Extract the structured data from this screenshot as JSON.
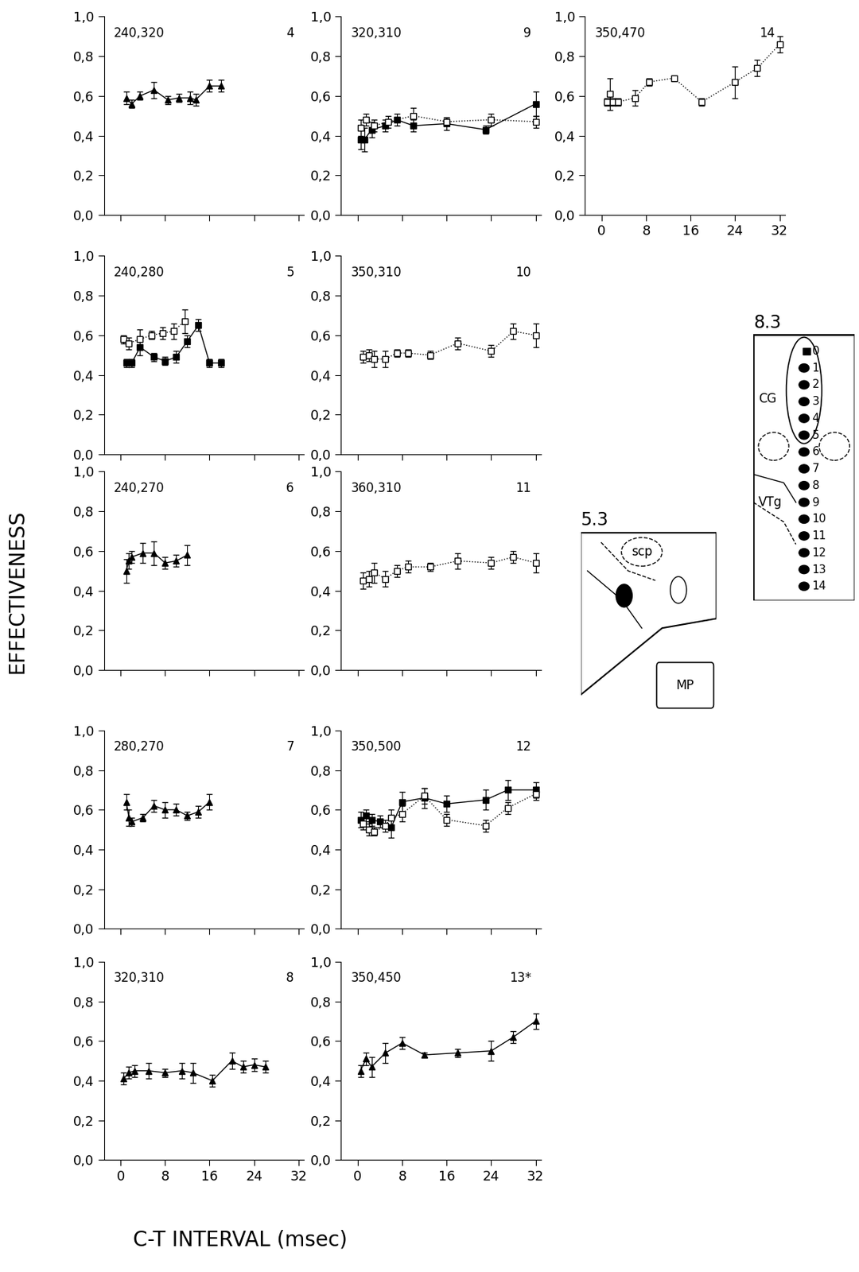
{
  "x_label": "C-T INTERVAL (msec)",
  "y_label": "EFFECTIVENESS",
  "chart_data": [
    {
      "type": "line",
      "title": "240,320",
      "label": "4",
      "tick_labels": "y",
      "xlim": [
        -3,
        33
      ],
      "ylim": [
        0,
        1
      ],
      "xticks": [
        0,
        8,
        16,
        24,
        32
      ],
      "yticks": [
        {
          "value": 0,
          "label": "0,0"
        },
        {
          "value": 0.2,
          "label": "0,2"
        },
        {
          "value": 0.4,
          "label": "0,4"
        },
        {
          "value": 0.6,
          "label": "0,6"
        },
        {
          "value": 0.8,
          "label": "0,8"
        },
        {
          "value": 1,
          "label": "1,0"
        }
      ],
      "series": [
        {
          "color": "#000000",
          "marker": "triangle",
          "line_style": "solid",
          "x": [
            1,
            2,
            3.5,
            6,
            8.5,
            10.5,
            12.5,
            13.5,
            16,
            18
          ],
          "values": [
            0.59,
            0.56,
            0.6,
            0.63,
            0.58,
            0.59,
            0.59,
            0.58,
            0.65,
            0.65
          ],
          "errors": [
            0.03,
            0.02,
            0.02,
            0.04,
            0.02,
            0.02,
            0.03,
            0.03,
            0.03,
            0.03
          ]
        }
      ]
    },
    {
      "type": "line",
      "title": "240,280",
      "label": "5",
      "tick_labels": "y",
      "xlim": [
        -3,
        33
      ],
      "ylim": [
        0,
        1
      ],
      "xticks": [
        0,
        8,
        16,
        24,
        32
      ],
      "yticks": [
        {
          "value": 0,
          "label": "0,0"
        },
        {
          "value": 0.2,
          "label": "0,2"
        },
        {
          "value": 0.4,
          "label": "0,4"
        },
        {
          "value": 0.6,
          "label": "0,6"
        },
        {
          "value": 0.8,
          "label": "0,8"
        },
        {
          "value": 1,
          "label": "1,0"
        }
      ],
      "series": [
        {
          "color": "#000000",
          "marker": "square",
          "line_style": "solid",
          "x": [
            1,
            2,
            3.5,
            6,
            8,
            10,
            12,
            14,
            16,
            18
          ],
          "values": [
            0.46,
            0.46,
            0.54,
            0.49,
            0.47,
            0.49,
            0.57,
            0.65,
            0.46,
            0.46
          ],
          "errors": [
            0.02,
            0.02,
            0.04,
            0.02,
            0.02,
            0.03,
            0.03,
            0.03,
            0.02,
            0.02
          ]
        },
        {
          "color": "#000000",
          "marker": "open_square",
          "line_style": "dotted",
          "x": [
            0.5,
            1.5,
            3.5,
            5.5,
            7.5,
            9.5,
            11.5
          ],
          "values": [
            0.58,
            0.56,
            0.58,
            0.6,
            0.61,
            0.62,
            0.67
          ],
          "errors": [
            0.02,
            0.03,
            0.05,
            0.02,
            0.03,
            0.04,
            0.06
          ]
        }
      ]
    },
    {
      "type": "line",
      "title": "240,270",
      "label": "6",
      "tick_labels": "y",
      "xlim": [
        -3,
        33
      ],
      "ylim": [
        0,
        1
      ],
      "xticks": [
        0,
        8,
        16,
        24,
        32
      ],
      "yticks": [
        {
          "value": 0,
          "label": "0,0"
        },
        {
          "value": 0.2,
          "label": "0,2"
        },
        {
          "value": 0.4,
          "label": "0,4"
        },
        {
          "value": 0.6,
          "label": "0,6"
        },
        {
          "value": 0.8,
          "label": "0,8"
        },
        {
          "value": 1,
          "label": "1,0"
        }
      ],
      "series": [
        {
          "color": "#000000",
          "marker": "triangle",
          "line_style": "solid",
          "x": [
            1,
            1.5,
            2,
            4,
            6,
            8,
            10,
            12
          ],
          "values": [
            0.5,
            0.55,
            0.57,
            0.59,
            0.59,
            0.54,
            0.55,
            0.58
          ],
          "errors": [
            0.06,
            0.04,
            0.03,
            0.05,
            0.06,
            0.03,
            0.03,
            0.05
          ]
        }
      ]
    },
    {
      "type": "line",
      "title": "280,270",
      "label": "7",
      "tick_labels": "y",
      "xlim": [
        -3,
        33
      ],
      "ylim": [
        0,
        1
      ],
      "xticks": [
        0,
        8,
        16,
        24,
        32
      ],
      "yticks": [
        {
          "value": 0,
          "label": "0,0"
        },
        {
          "value": 0.2,
          "label": "0,2"
        },
        {
          "value": 0.4,
          "label": "0,4"
        },
        {
          "value": 0.6,
          "label": "0,6"
        },
        {
          "value": 0.8,
          "label": "0,8"
        },
        {
          "value": 1,
          "label": "1,0"
        }
      ],
      "series": [
        {
          "color": "#000000",
          "marker": "triangle",
          "line_style": "solid",
          "x": [
            1,
            1.5,
            2,
            4,
            6,
            8,
            10,
            12,
            14,
            16
          ],
          "values": [
            0.64,
            0.56,
            0.54,
            0.56,
            0.62,
            0.6,
            0.6,
            0.57,
            0.59,
            0.64
          ],
          "errors": [
            0.04,
            0.04,
            0.02,
            0.02,
            0.03,
            0.04,
            0.03,
            0.02,
            0.03,
            0.04
          ]
        }
      ]
    },
    {
      "type": "line",
      "title": "320,310",
      "label": "8",
      "xlim": [
        -3,
        33
      ],
      "ylim": [
        0,
        1
      ],
      "xticks": [
        0,
        8,
        16,
        24,
        32
      ],
      "yticks": [
        {
          "value": 0,
          "label": "0,0"
        },
        {
          "value": 0.2,
          "label": "0,2"
        },
        {
          "value": 0.4,
          "label": "0,4"
        },
        {
          "value": 0.6,
          "label": "0,6"
        },
        {
          "value": 0.8,
          "label": "0,8"
        },
        {
          "value": 1,
          "label": "1,0"
        }
      ],
      "series": [
        {
          "color": "#000000",
          "marker": "triangle",
          "line_style": "solid",
          "x": [
            0.5,
            1.5,
            2.5,
            5,
            8,
            11,
            13,
            16.5,
            20,
            22,
            24,
            26
          ],
          "values": [
            0.41,
            0.44,
            0.45,
            0.45,
            0.44,
            0.45,
            0.44,
            0.4,
            0.5,
            0.47,
            0.48,
            0.47
          ],
          "errors": [
            0.03,
            0.03,
            0.03,
            0.04,
            0.02,
            0.04,
            0.05,
            0.03,
            0.04,
            0.03,
            0.03,
            0.03
          ]
        }
      ]
    },
    {
      "type": "line",
      "title": "320,310",
      "label": "9",
      "tick_labels": "y",
      "xlim": [
        -3,
        33
      ],
      "ylim": [
        0,
        1
      ],
      "xticks": [
        0,
        8,
        16,
        24,
        32
      ],
      "yticks": [
        {
          "value": 0,
          "label": "0,0"
        },
        {
          "value": 0.2,
          "label": "0,2"
        },
        {
          "value": 0.4,
          "label": "0,4"
        },
        {
          "value": 0.6,
          "label": "0,6"
        },
        {
          "value": 0.8,
          "label": "0,8"
        },
        {
          "value": 1,
          "label": "1,0"
        }
      ],
      "series": [
        {
          "color": "#000000",
          "marker": "square",
          "line_style": "solid",
          "x": [
            0.5,
            1.2,
            2.5,
            5,
            7,
            10,
            16,
            23,
            32
          ],
          "values": [
            0.38,
            0.38,
            0.43,
            0.45,
            0.48,
            0.45,
            0.46,
            0.43,
            0.56
          ],
          "errors": [
            0.05,
            0.06,
            0.04,
            0.03,
            0.03,
            0.03,
            0.03,
            0.02,
            0.06
          ]
        },
        {
          "color": "#000000",
          "marker": "open_square",
          "line_style": "dotted",
          "x": [
            0.5,
            1.5,
            3,
            5.5,
            10,
            16,
            24,
            32
          ],
          "values": [
            0.44,
            0.48,
            0.45,
            0.47,
            0.5,
            0.47,
            0.48,
            0.47
          ],
          "errors": [
            0.04,
            0.03,
            0.03,
            0.03,
            0.04,
            0.02,
            0.03,
            0.03
          ]
        }
      ]
    },
    {
      "type": "line",
      "title": "350,310",
      "label": "10",
      "tick_labels": "y",
      "xlim": [
        -3,
        33
      ],
      "ylim": [
        0,
        1
      ],
      "xticks": [
        0,
        8,
        16,
        24,
        32
      ],
      "yticks": [
        {
          "value": 0,
          "label": "0,0"
        },
        {
          "value": 0.2,
          "label": "0,2"
        },
        {
          "value": 0.4,
          "label": "0,4"
        },
        {
          "value": 0.6,
          "label": "0,6"
        },
        {
          "value": 0.8,
          "label": "0,8"
        },
        {
          "value": 1,
          "label": "1,0"
        }
      ],
      "series": [
        {
          "color": "#000000",
          "marker": "open_square",
          "line_style": "dotted",
          "x": [
            1,
            2,
            3,
            5,
            7,
            9,
            13,
            18,
            24,
            28,
            32
          ],
          "values": [
            0.49,
            0.5,
            0.48,
            0.48,
            0.51,
            0.51,
            0.5,
            0.56,
            0.52,
            0.62,
            0.6
          ],
          "errors": [
            0.03,
            0.03,
            0.04,
            0.04,
            0.02,
            0.02,
            0.02,
            0.03,
            0.03,
            0.04,
            0.06
          ]
        }
      ]
    },
    {
      "type": "line",
      "title": "360,310",
      "label": "11",
      "tick_labels": "y",
      "xlim": [
        -3,
        33
      ],
      "ylim": [
        0,
        1
      ],
      "xticks": [
        0,
        8,
        16,
        24,
        32
      ],
      "yticks": [
        {
          "value": 0,
          "label": "0,0"
        },
        {
          "value": 0.2,
          "label": "0,2"
        },
        {
          "value": 0.4,
          "label": "0,4"
        },
        {
          "value": 0.6,
          "label": "0,6"
        },
        {
          "value": 0.8,
          "label": "0,8"
        },
        {
          "value": 1,
          "label": "1,0"
        }
      ],
      "series": [
        {
          "color": "#000000",
          "marker": "open_square",
          "line_style": "dotted",
          "x": [
            1,
            2,
            3,
            5,
            7,
            9,
            13,
            18,
            24,
            28,
            32
          ],
          "values": [
            0.45,
            0.46,
            0.49,
            0.46,
            0.5,
            0.52,
            0.52,
            0.55,
            0.54,
            0.57,
            0.54
          ],
          "errors": [
            0.04,
            0.04,
            0.05,
            0.04,
            0.03,
            0.03,
            0.02,
            0.04,
            0.03,
            0.03,
            0.05
          ]
        }
      ]
    },
    {
      "type": "line",
      "title": "350,500",
      "label": "12",
      "tick_labels": "y",
      "xlim": [
        -3,
        33
      ],
      "ylim": [
        0,
        1
      ],
      "xticks": [
        0,
        8,
        16,
        24,
        32
      ],
      "yticks": [
        {
          "value": 0,
          "label": "0,0"
        },
        {
          "value": 0.2,
          "label": "0,2"
        },
        {
          "value": 0.4,
          "label": "0,4"
        },
        {
          "value": 0.6,
          "label": "0,6"
        },
        {
          "value": 0.8,
          "label": "0,8"
        },
        {
          "value": 1,
          "label": "1,0"
        }
      ],
      "series": [
        {
          "color": "#000000",
          "marker": "square",
          "line_style": "solid",
          "x": [
            0.5,
            1.5,
            2.5,
            4,
            6,
            8,
            12,
            16,
            23,
            27,
            32
          ],
          "values": [
            0.55,
            0.57,
            0.55,
            0.54,
            0.51,
            0.64,
            0.66,
            0.63,
            0.65,
            0.7,
            0.7
          ],
          "errors": [
            0.04,
            0.03,
            0.03,
            0.03,
            0.05,
            0.05,
            0.05,
            0.04,
            0.05,
            0.05,
            0.04
          ]
        },
        {
          "color": "#000000",
          "marker": "open_square",
          "line_style": "dotted",
          "x": [
            1,
            2,
            3,
            5,
            6,
            8,
            12,
            16,
            23,
            27,
            32
          ],
          "values": [
            0.53,
            0.5,
            0.49,
            0.52,
            0.56,
            0.58,
            0.67,
            0.55,
            0.52,
            0.61,
            0.68
          ],
          "errors": [
            0.03,
            0.03,
            0.02,
            0.03,
            0.04,
            0.04,
            0.04,
            0.03,
            0.03,
            0.03,
            0.03
          ]
        }
      ]
    },
    {
      "type": "line",
      "title": "350,450",
      "label": "13*",
      "xlim": [
        -3,
        33
      ],
      "ylim": [
        0,
        1
      ],
      "xticks": [
        0,
        8,
        16,
        24,
        32
      ],
      "yticks": [
        {
          "value": 0,
          "label": "0,0"
        },
        {
          "value": 0.2,
          "label": "0,2"
        },
        {
          "value": 0.4,
          "label": "0,4"
        },
        {
          "value": 0.6,
          "label": "0,6"
        },
        {
          "value": 0.8,
          "label": "0,8"
        },
        {
          "value": 1,
          "label": "1,0"
        }
      ],
      "series": [
        {
          "color": "#000000",
          "marker": "triangle",
          "line_style": "solid",
          "x": [
            0.5,
            1.5,
            2.5,
            5,
            8,
            12,
            18,
            24,
            28,
            32
          ],
          "values": [
            0.45,
            0.51,
            0.47,
            0.54,
            0.59,
            0.53,
            0.54,
            0.55,
            0.62,
            0.7
          ],
          "errors": [
            0.03,
            0.03,
            0.05,
            0.05,
            0.03,
            0.01,
            0.02,
            0.05,
            0.03,
            0.04
          ]
        }
      ]
    },
    {
      "type": "line",
      "title": "350,470",
      "label": "14",
      "xlim": [
        -3,
        33
      ],
      "ylim": [
        0,
        1
      ],
      "xticks": [
        0,
        8,
        16,
        24,
        32
      ],
      "yticks": [
        {
          "value": 0,
          "label": "0,0"
        },
        {
          "value": 0.2,
          "label": "0,2"
        },
        {
          "value": 0.4,
          "label": "0,4"
        },
        {
          "value": 0.6,
          "label": "0,6"
        },
        {
          "value": 0.8,
          "label": "0,8"
        },
        {
          "value": 1,
          "label": "1,0"
        }
      ],
      "series": [
        {
          "color": "#000000",
          "marker": "open_square",
          "line_style": "dotted",
          "x": [
            1,
            1.5,
            2,
            3,
            6,
            8.5,
            13,
            18,
            24,
            28,
            32
          ],
          "values": [
            0.57,
            0.61,
            0.57,
            0.57,
            0.59,
            0.67,
            0.69,
            0.57,
            0.67,
            0.74,
            0.86
          ],
          "errors": [
            0.02,
            0.08,
            0.02,
            0.02,
            0.04,
            0.02,
            0.01,
            0.02,
            0.08,
            0.04,
            0.04
          ]
        }
      ]
    }
  ],
  "diagrams": [
    {
      "label": "5.3",
      "texts": [
        "scp",
        "MP"
      ]
    },
    {
      "label": "8.3",
      "texts": [
        "CG",
        "VTg"
      ],
      "points": [
        0,
        1,
        2,
        3,
        4,
        5,
        6,
        7,
        8,
        9,
        10,
        11,
        12,
        13,
        14
      ]
    }
  ]
}
